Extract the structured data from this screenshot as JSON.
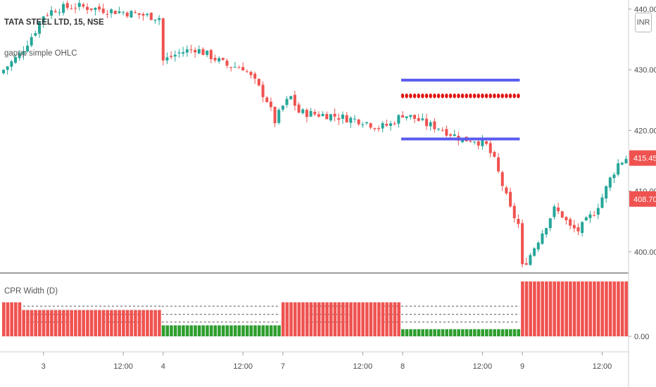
{
  "header": {
    "ticker_label": "TATA STEEL LTD, 15, NSE",
    "indicator1_label": "gapup simple OHLC",
    "indicator2_label": "CPR Width (D)",
    "currency_button": "INR"
  },
  "colors": {
    "up": "#26a69a",
    "down": "#ef5350",
    "level_blue": "#5b5bf0",
    "level_red": "#e01010",
    "hist_red": "#ef5350",
    "hist_green": "#2e9e2e",
    "axis_text": "#4a4a4a",
    "price_label_bg": "#ef5350",
    "separator": "#9e9e9e"
  },
  "chart_data": [
    {
      "type": "candlestick",
      "title": "TATA STEEL LTD, 15, NSE",
      "ylim": [
        396.5,
        441.5
      ],
      "y_ticks": [
        "400.00",
        "410.00",
        "420.00",
        "430.00",
        "440.00"
      ],
      "y_tick_values": [
        400,
        410,
        420,
        430,
        440
      ],
      "x_ticks": [
        "3",
        "12:00",
        "4",
        "12:00",
        "7",
        "12:00",
        "8",
        "12:00",
        "9",
        "12:00"
      ],
      "x_tick_bars": [
        10,
        30,
        40,
        60,
        70,
        90,
        100,
        120,
        130,
        150
      ],
      "bar_count": 157,
      "price_labels": [
        "415.45",
        "408.70"
      ],
      "price_label_values": [
        415.45,
        408.7
      ],
      "levels": [
        {
          "color": "blue",
          "value": 428.3,
          "from_bar": 100,
          "to_bar": 129
        },
        {
          "color": "red-dots",
          "value": 425.7,
          "from_bar": 100,
          "to_bar": 129
        },
        {
          "color": "blue",
          "value": 418.6,
          "from_bar": 100,
          "to_bar": 129
        }
      ],
      "anchors": [
        [
          0,
          430.0
        ],
        [
          4,
          432.5
        ],
        [
          8,
          436.5
        ],
        [
          10,
          439.0
        ],
        [
          13,
          440.0
        ],
        [
          18,
          440.5
        ],
        [
          22,
          440.2
        ],
        [
          26,
          439.8
        ],
        [
          30,
          439.5
        ],
        [
          35,
          439.0
        ],
        [
          39,
          438.6
        ],
        [
          40,
          431.5
        ],
        [
          44,
          432.8
        ],
        [
          48,
          433.5
        ],
        [
          52,
          432.2
        ],
        [
          56,
          430.7
        ],
        [
          60,
          430.4
        ],
        [
          63,
          428.0
        ],
        [
          66,
          425.0
        ],
        [
          68,
          421.5
        ],
        [
          70,
          424.0
        ],
        [
          72,
          425.5
        ],
        [
          74,
          423.0
        ],
        [
          78,
          422.7
        ],
        [
          82,
          422.5
        ],
        [
          86,
          422.0
        ],
        [
          90,
          421.6
        ],
        [
          94,
          420.5
        ],
        [
          97,
          421.0
        ],
        [
          100,
          422.7
        ],
        [
          103,
          422.0
        ],
        [
          106,
          421.0
        ],
        [
          109,
          420.5
        ],
        [
          112,
          419.5
        ],
        [
          115,
          418.5
        ],
        [
          118,
          418.5
        ],
        [
          121,
          417.5
        ],
        [
          123,
          415.0
        ],
        [
          125,
          411.0
        ],
        [
          127,
          407.0
        ],
        [
          129,
          404.5
        ],
        [
          130,
          397.5
        ],
        [
          132,
          399.5
        ],
        [
          134,
          402.0
        ],
        [
          136,
          404.5
        ],
        [
          138,
          407.0
        ],
        [
          140,
          406.0
        ],
        [
          142,
          404.0
        ],
        [
          144,
          403.5
        ],
        [
          146,
          405.0
        ],
        [
          148,
          406.5
        ],
        [
          150,
          409.0
        ],
        [
          152,
          412.0
        ],
        [
          154,
          414.5
        ],
        [
          156,
          415.45
        ]
      ]
    },
    {
      "type": "bar",
      "title": "CPR Width (D)",
      "ylim": [
        0,
        1.0
      ],
      "y_ticks": [
        "0.00"
      ],
      "y_tick_values": [
        0
      ],
      "bar_count": 157,
      "segments": [
        {
          "from_bar": 0,
          "to_bar": 4,
          "value": 0.62,
          "color": "red"
        },
        {
          "from_bar": 5,
          "to_bar": 39,
          "value": 0.48,
          "color": "red"
        },
        {
          "from_bar": 40,
          "to_bar": 69,
          "value": 0.2,
          "color": "green"
        },
        {
          "from_bar": 70,
          "to_bar": 99,
          "value": 0.62,
          "color": "red"
        },
        {
          "from_bar": 100,
          "to_bar": 129,
          "value": 0.13,
          "color": "green"
        },
        {
          "from_bar": 130,
          "to_bar": 156,
          "value": 1.0,
          "color": "red"
        }
      ],
      "dashed_levels": [
        0.55,
        0.4,
        0.26
      ]
    }
  ]
}
